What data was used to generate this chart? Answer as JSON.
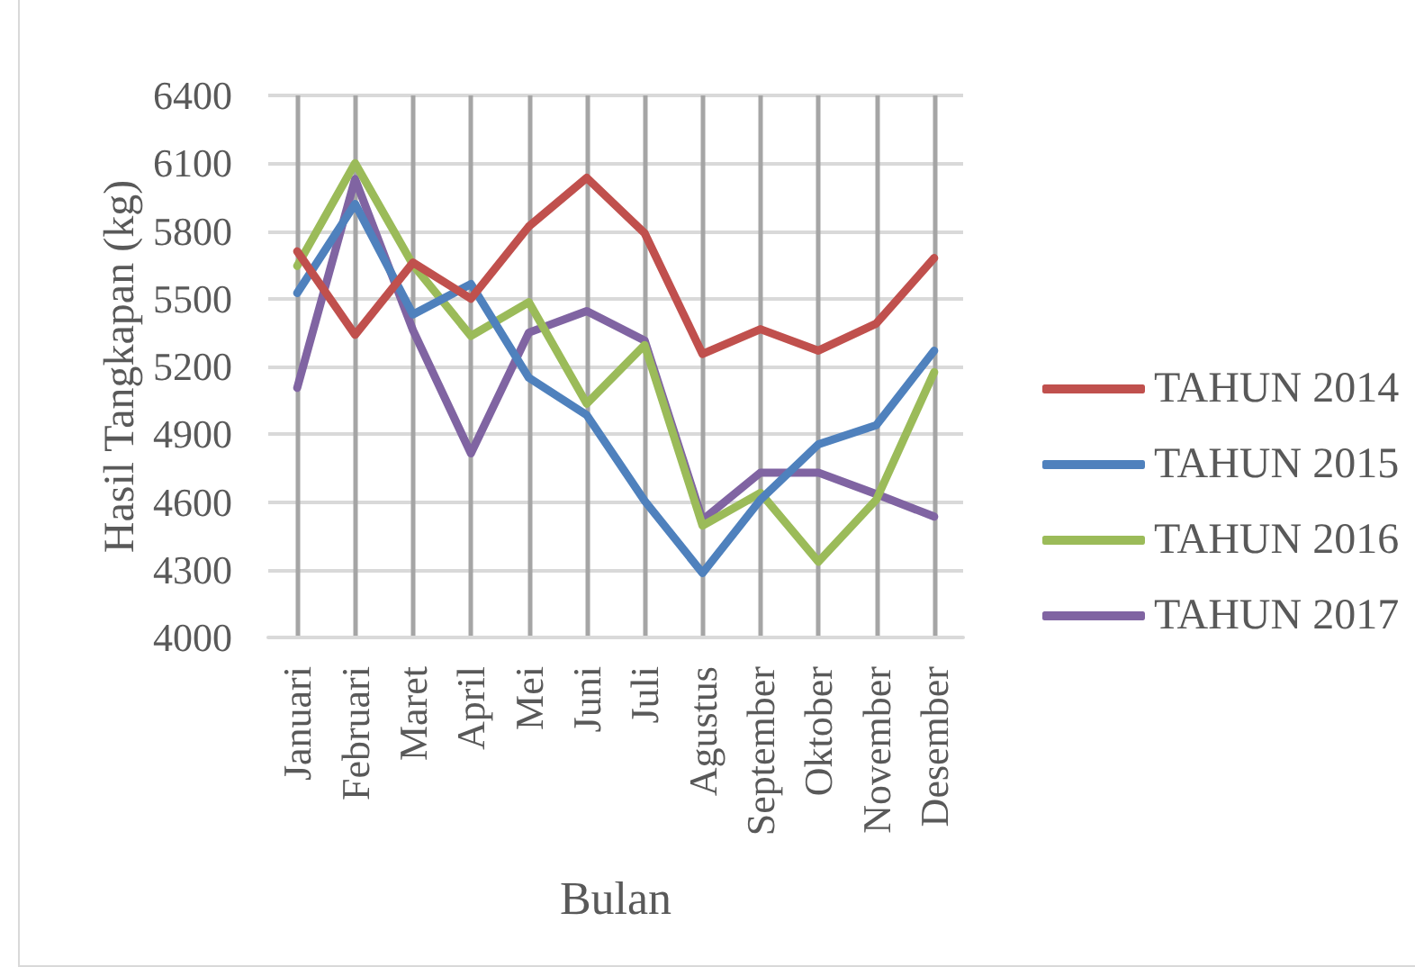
{
  "chart_data": {
    "type": "line",
    "xlabel": "Bulan",
    "ylabel": "Hasil Tangkapan (kg)",
    "categories": [
      "Januari",
      "Februari",
      "Maret",
      "April",
      "Mei",
      "Juni",
      "Juli",
      "Agustus",
      "September",
      "Oktober",
      "November",
      "Desember"
    ],
    "series": [
      {
        "name": "TAHUN 2014",
        "color": "#c0504d",
        "values": [
          5710,
          5340,
          5660,
          5500,
          5820,
          6035,
          5790,
          5255,
          5365,
          5270,
          5390,
          5680
        ]
      },
      {
        "name": "TAHUN 2015",
        "color": "#4f81bd",
        "values": [
          5525,
          5920,
          5430,
          5565,
          5150,
          4985,
          4605,
          4285,
          4610,
          4855,
          4940,
          5270
        ]
      },
      {
        "name": "TAHUN 2016",
        "color": "#9bbb59",
        "values": [
          5645,
          6100,
          5650,
          5335,
          5485,
          5035,
          5295,
          4495,
          4640,
          4335,
          4610,
          5175
        ]
      },
      {
        "name": "TAHUN 2017",
        "color": "#8064a2",
        "values": [
          5105,
          6030,
          5360,
          4815,
          5350,
          5445,
          5315,
          4520,
          4730,
          4730,
          4635,
          4535
        ]
      }
    ],
    "ylim": [
      4000,
      6400
    ],
    "yticks": [
      4000,
      4300,
      4600,
      4900,
      5200,
      5500,
      5800,
      6100,
      6400
    ],
    "grid": true,
    "legend": "right",
    "marker": "none",
    "line_style": "solid"
  }
}
